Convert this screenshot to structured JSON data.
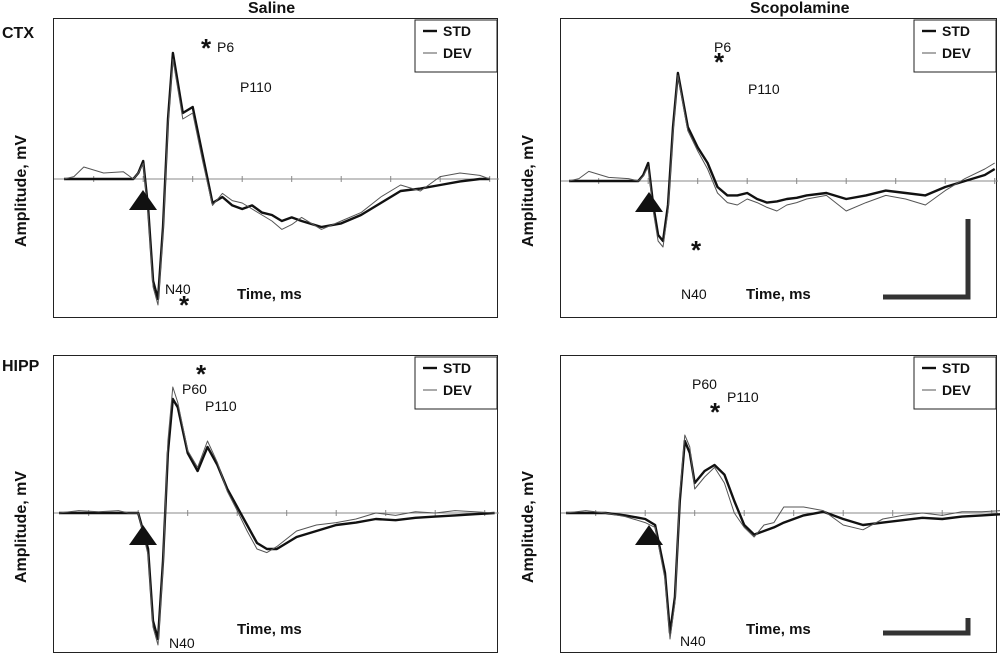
{
  "column_titles": [
    "Saline",
    "Scopolamine"
  ],
  "row_labels": [
    "CTX",
    "HIPP"
  ],
  "chart_data": [
    {
      "type": "line",
      "region": "CTX",
      "condition": "Saline",
      "xlabel": "Time, ms",
      "ylabel": "Amplitude, mV",
      "legend": [
        "STD",
        "DEV"
      ],
      "legend_position": "top-right",
      "series": [
        {
          "name": "STD",
          "x": [
            0,
            10,
            20,
            40,
            60,
            70,
            75,
            80,
            85,
            90,
            95,
            100,
            105,
            110,
            120,
            130,
            140,
            150,
            160,
            170,
            180,
            190,
            200,
            210,
            220,
            230,
            240,
            260,
            280,
            300,
            320,
            340,
            360,
            380,
            400,
            420,
            430
          ],
          "y": [
            0,
            0,
            0,
            0,
            0,
            0,
            0.05,
            0.15,
            -0.25,
            -0.85,
            -1.0,
            -0.4,
            0.5,
            1.05,
            0.55,
            0.6,
            0.2,
            -0.2,
            -0.15,
            -0.22,
            -0.25,
            -0.22,
            -0.28,
            -0.3,
            -0.35,
            -0.32,
            -0.35,
            -0.4,
            -0.37,
            -0.3,
            -0.2,
            -0.1,
            -0.08,
            -0.05,
            -0.02,
            0,
            0
          ]
        },
        {
          "name": "DEV",
          "x": [
            0,
            10,
            20,
            40,
            60,
            70,
            75,
            80,
            85,
            90,
            95,
            100,
            105,
            110,
            120,
            130,
            140,
            150,
            160,
            170,
            180,
            190,
            200,
            210,
            220,
            230,
            240,
            260,
            280,
            300,
            320,
            340,
            360,
            380,
            400,
            420,
            430
          ],
          "y": [
            0,
            0.02,
            0.1,
            0.05,
            0.06,
            0,
            0.05,
            0.13,
            -0.3,
            -0.9,
            -1.05,
            -0.45,
            0.45,
            1.0,
            0.5,
            0.55,
            0.15,
            -0.22,
            -0.12,
            -0.18,
            -0.2,
            -0.25,
            -0.3,
            -0.35,
            -0.42,
            -0.38,
            -0.32,
            -0.42,
            -0.35,
            -0.28,
            -0.15,
            -0.05,
            -0.1,
            0.02,
            0.05,
            0.03,
            0
          ]
        }
      ],
      "annotations": [
        "P6",
        "P110",
        "N40"
      ],
      "significance_markers": 2,
      "scale_bar": false
    },
    {
      "type": "line",
      "region": "CTX",
      "condition": "Scopolamine",
      "xlabel": "Time, ms",
      "ylabel": "Amplitude, mV",
      "legend": [
        "STD",
        "DEV"
      ],
      "legend_position": "top-right",
      "series": [
        {
          "name": "STD",
          "x": [
            0,
            10,
            20,
            40,
            60,
            70,
            75,
            80,
            85,
            90,
            95,
            100,
            105,
            110,
            120,
            130,
            140,
            150,
            160,
            170,
            180,
            190,
            200,
            210,
            220,
            230,
            240,
            260,
            280,
            300,
            320,
            340,
            360,
            380,
            400,
            420,
            430
          ],
          "y": [
            0,
            0,
            0,
            0,
            0,
            0,
            0.05,
            0.15,
            -0.2,
            -0.45,
            -0.5,
            -0.2,
            0.45,
            0.9,
            0.45,
            0.28,
            0.15,
            -0.05,
            -0.12,
            -0.12,
            -0.1,
            -0.15,
            -0.18,
            -0.17,
            -0.15,
            -0.14,
            -0.12,
            -0.1,
            -0.15,
            -0.12,
            -0.08,
            -0.1,
            -0.12,
            -0.05,
            0,
            0.05,
            0.1
          ]
        },
        {
          "name": "DEV",
          "x": [
            0,
            10,
            20,
            40,
            60,
            70,
            75,
            80,
            85,
            90,
            95,
            100,
            105,
            110,
            120,
            130,
            140,
            150,
            160,
            170,
            180,
            190,
            200,
            210,
            220,
            230,
            240,
            260,
            280,
            300,
            320,
            340,
            360,
            380,
            400,
            420,
            430
          ],
          "y": [
            0,
            0.02,
            0.08,
            0.03,
            0.02,
            0,
            0.04,
            0.12,
            -0.25,
            -0.5,
            -0.55,
            -0.25,
            0.4,
            0.88,
            0.42,
            0.25,
            0.1,
            -0.1,
            -0.18,
            -0.2,
            -0.15,
            -0.18,
            -0.22,
            -0.25,
            -0.2,
            -0.18,
            -0.15,
            -0.12,
            -0.25,
            -0.18,
            -0.12,
            -0.15,
            -0.2,
            -0.08,
            0.02,
            0.1,
            0.15
          ]
        }
      ],
      "annotations": [
        "P6",
        "P110",
        "N40"
      ],
      "significance_markers": 2,
      "scale_bar": true
    },
    {
      "type": "line",
      "region": "HIPP",
      "condition": "Saline",
      "xlabel": "Time, ms",
      "ylabel": "Amplitude, mV",
      "legend": [
        "STD",
        "DEV"
      ],
      "legend_position": "top-right",
      "series": [
        {
          "name": "STD",
          "x": [
            0,
            20,
            40,
            60,
            70,
            80,
            90,
            95,
            100,
            105,
            110,
            115,
            120,
            130,
            140,
            150,
            160,
            170,
            180,
            190,
            200,
            210,
            220,
            240,
            260,
            280,
            300,
            320,
            340,
            360,
            380,
            400,
            420,
            440
          ],
          "y": [
            0,
            0,
            0,
            0,
            0,
            0,
            -0.3,
            -0.9,
            -1.05,
            -0.4,
            0.5,
            0.95,
            0.88,
            0.5,
            0.35,
            0.55,
            0.4,
            0.2,
            0.05,
            -0.1,
            -0.25,
            -0.3,
            -0.3,
            -0.2,
            -0.15,
            -0.1,
            -0.08,
            -0.05,
            -0.06,
            -0.04,
            -0.03,
            -0.02,
            -0.01,
            0
          ]
        },
        {
          "name": "DEV",
          "x": [
            0,
            20,
            40,
            60,
            70,
            80,
            90,
            95,
            100,
            105,
            110,
            115,
            120,
            130,
            140,
            150,
            160,
            170,
            180,
            190,
            200,
            210,
            220,
            240,
            260,
            280,
            300,
            320,
            340,
            360,
            380,
            400,
            420,
            440
          ],
          "y": [
            0,
            0.02,
            0.01,
            0.02,
            0,
            0,
            -0.35,
            -0.95,
            -1.1,
            -0.45,
            0.6,
            1.05,
            0.92,
            0.52,
            0.38,
            0.6,
            0.42,
            0.18,
            0.02,
            -0.15,
            -0.3,
            -0.33,
            -0.28,
            -0.15,
            -0.1,
            -0.08,
            -0.05,
            0,
            -0.02,
            0.01,
            0,
            0.02,
            0.01,
            0
          ]
        }
      ],
      "annotations": [
        "P60",
        "P110",
        "N40"
      ],
      "significance_markers": 1,
      "scale_bar": false
    },
    {
      "type": "line",
      "region": "HIPP",
      "condition": "Scopolamine",
      "xlabel": "Time, ms",
      "ylabel": "Amplitude, mV",
      "legend": [
        "STD",
        "DEV"
      ],
      "legend_position": "top-right",
      "series": [
        {
          "name": "STD",
          "x": [
            0,
            20,
            40,
            60,
            80,
            90,
            100,
            105,
            110,
            115,
            120,
            125,
            130,
            140,
            150,
            160,
            170,
            180,
            190,
            200,
            210,
            220,
            240,
            260,
            280,
            300,
            320,
            340,
            360,
            380,
            400,
            420,
            440
          ],
          "y": [
            0,
            0,
            0,
            -0.02,
            -0.05,
            -0.1,
            -0.5,
            -1.0,
            -0.7,
            0.1,
            0.6,
            0.5,
            0.25,
            0.35,
            0.4,
            0.32,
            0.1,
            -0.1,
            -0.18,
            -0.15,
            -0.12,
            -0.08,
            -0.02,
            0.01,
            -0.05,
            -0.1,
            -0.08,
            -0.06,
            -0.04,
            -0.05,
            -0.03,
            -0.02,
            -0.01
          ]
        },
        {
          "name": "DEV",
          "x": [
            0,
            20,
            40,
            60,
            80,
            90,
            100,
            105,
            110,
            115,
            120,
            125,
            130,
            140,
            150,
            160,
            170,
            180,
            190,
            200,
            210,
            220,
            240,
            260,
            280,
            300,
            320,
            340,
            360,
            380,
            400,
            420,
            440
          ],
          "y": [
            0,
            0.02,
            0,
            -0.03,
            -0.08,
            -0.12,
            -0.55,
            -1.05,
            -0.75,
            0.15,
            0.65,
            0.55,
            0.2,
            0.3,
            0.38,
            0.25,
            0.0,
            -0.12,
            -0.2,
            -0.1,
            -0.08,
            0.05,
            0.05,
            0.02,
            -0.1,
            -0.14,
            -0.05,
            -0.02,
            0.0,
            -0.02,
            0.01,
            0.01,
            0.02
          ]
        }
      ],
      "annotations": [
        "P60",
        "P110",
        "N40"
      ],
      "significance_markers": 1,
      "scale_bar": true
    }
  ]
}
